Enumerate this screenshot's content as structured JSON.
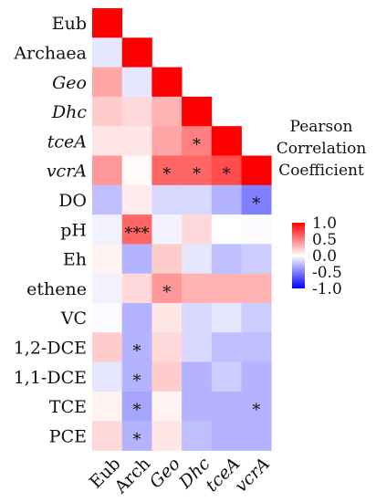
{
  "chart_data": {
    "type": "heatmap",
    "legend": {
      "title": [
        "Pearson",
        "Correlation",
        "Coefficient"
      ],
      "ticks": [
        "1.0",
        "0.5",
        "0.0",
        "-0.5",
        "-1.0"
      ],
      "placement": "right",
      "colors": {
        "high": "#ff0000",
        "mid": "#ffffff",
        "low": "#0000ff"
      }
    },
    "rows": [
      {
        "label": "Eub",
        "italic": false
      },
      {
        "label": "Archaea",
        "italic": false
      },
      {
        "label": "Geo",
        "italic": true
      },
      {
        "label": "Dhc",
        "italic": true
      },
      {
        "label": "tceA",
        "italic": true
      },
      {
        "label": "vcrA",
        "italic": true
      },
      {
        "label": "DO",
        "italic": false
      },
      {
        "label": "pH",
        "italic": false
      },
      {
        "label": "Eh",
        "italic": false
      },
      {
        "label": "ethene",
        "italic": false
      },
      {
        "label": "VC",
        "italic": false
      },
      {
        "label": "1,2-DCE",
        "italic": false
      },
      {
        "label": "1,1-DCE",
        "italic": false
      },
      {
        "label": "TCE",
        "italic": false
      },
      {
        "label": "PCE",
        "italic": false
      }
    ],
    "columns": [
      {
        "label": "Eub",
        "italic": false
      },
      {
        "label": "Arch",
        "italic": false
      },
      {
        "label": "Geo",
        "italic": true
      },
      {
        "label": "Dhc",
        "italic": true
      },
      {
        "label": "tceA",
        "italic": true
      },
      {
        "label": "vcrA",
        "italic": true
      }
    ],
    "values": [
      [
        1.0,
        null,
        null,
        null,
        null,
        null
      ],
      [
        -0.1,
        1.0,
        null,
        null,
        null,
        null
      ],
      [
        0.35,
        -0.1,
        1.0,
        null,
        null,
        null
      ],
      [
        0.2,
        0.15,
        0.3,
        1.0,
        null,
        null
      ],
      [
        0.1,
        0.1,
        0.35,
        0.5,
        1.0,
        null
      ],
      [
        0.4,
        0.02,
        0.6,
        0.6,
        0.7,
        1.0
      ],
      [
        -0.25,
        0.08,
        -0.15,
        -0.15,
        -0.3,
        -0.5
      ],
      [
        -0.05,
        0.6,
        -0.05,
        0.15,
        0.0,
        -0.02
      ],
      [
        0.05,
        -0.3,
        0.2,
        -0.1,
        -0.25,
        -0.2
      ],
      [
        -0.05,
        0.15,
        0.4,
        0.3,
        0.3,
        0.3
      ],
      [
        -0.02,
        -0.3,
        0.1,
        -0.15,
        -0.1,
        -0.2
      ],
      [
        0.2,
        -0.3,
        0.15,
        -0.15,
        -0.25,
        -0.25
      ],
      [
        -0.1,
        -0.3,
        0.2,
        -0.3,
        -0.2,
        -0.3
      ],
      [
        0.05,
        -0.35,
        0.05,
        -0.3,
        -0.3,
        -0.3
      ],
      [
        0.15,
        -0.3,
        0.1,
        -0.25,
        -0.3,
        -0.3
      ]
    ],
    "annotations": [
      [
        "",
        "",
        "",
        "",
        "",
        ""
      ],
      [
        "",
        "",
        "",
        "",
        "",
        ""
      ],
      [
        "",
        "",
        "",
        "",
        "",
        ""
      ],
      [
        "",
        "",
        "",
        "",
        "",
        ""
      ],
      [
        "",
        "",
        "",
        "*",
        "",
        ""
      ],
      [
        "",
        "",
        "*",
        "*",
        "*",
        ""
      ],
      [
        "",
        "",
        "",
        "",
        "",
        "*"
      ],
      [
        "",
        "***",
        "",
        "",
        "",
        ""
      ],
      [
        "",
        "",
        "",
        "",
        "",
        ""
      ],
      [
        "",
        "",
        "*",
        "",
        "",
        ""
      ],
      [
        "",
        "",
        "",
        "",
        "",
        ""
      ],
      [
        "",
        "*",
        "",
        "",
        "",
        ""
      ],
      [
        "",
        "*",
        "",
        "",
        "",
        ""
      ],
      [
        "",
        "*",
        "",
        "",
        "",
        "*"
      ],
      [
        "",
        "*",
        "",
        "",
        "",
        ""
      ]
    ]
  }
}
